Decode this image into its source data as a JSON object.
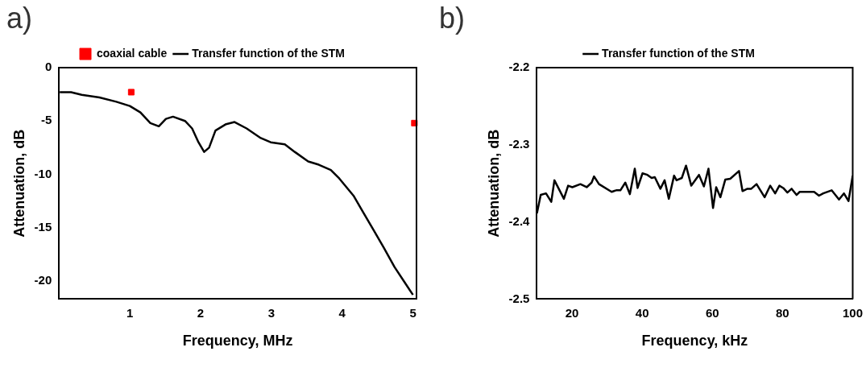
{
  "chart_data": [
    {
      "type": "line",
      "title": "a)",
      "xlabel": "Frequency, MHz",
      "ylabel": "Attenuation, dB",
      "xlim": [
        0,
        5.05
      ],
      "ylim": [
        -21.7,
        0
      ],
      "xticks": [
        1,
        2,
        3,
        4,
        5
      ],
      "yticks": [
        0,
        -5,
        -10,
        -15,
        -20
      ],
      "legend": "top",
      "grid": false,
      "series": [
        {
          "name": "coaxial cable",
          "type": "scatter",
          "marker": "square",
          "color": "#ff0000",
          "x": [
            1.02,
            5.02
          ],
          "values": [
            -2.3,
            -5.2
          ]
        },
        {
          "name": "Transfer function of the STM",
          "marker": "none",
          "color": "#000000",
          "x": [
            0.01,
            0.17,
            0.32,
            0.57,
            0.81,
            1.0,
            1.15,
            1.29,
            1.41,
            1.51,
            1.61,
            1.78,
            1.88,
            1.97,
            2.05,
            2.12,
            2.21,
            2.36,
            2.48,
            2.65,
            2.85,
            2.99,
            3.19,
            3.33,
            3.52,
            3.67,
            3.84,
            3.96,
            4.16,
            4.3,
            4.45,
            4.59,
            4.74,
            4.88,
            5.0
          ],
          "values": [
            -2.3,
            -2.3,
            -2.55,
            -2.8,
            -3.2,
            -3.6,
            -4.2,
            -5.2,
            -5.5,
            -4.8,
            -4.6,
            -5.0,
            -5.7,
            -7.0,
            -7.9,
            -7.5,
            -5.9,
            -5.3,
            -5.1,
            -5.7,
            -6.6,
            -7.0,
            -7.2,
            -7.9,
            -8.8,
            -9.1,
            -9.6,
            -10.4,
            -12.0,
            -13.6,
            -15.3,
            -16.9,
            -18.7,
            -20.1,
            -21.3
          ]
        }
      ]
    },
    {
      "type": "line",
      "title": "b)",
      "xlabel": "Frequency, kHz",
      "ylabel": "Attenuation, dB",
      "xlim": [
        10,
        100
      ],
      "ylim": [
        -2.5,
        -2.2
      ],
      "xticks": [
        20,
        40,
        60,
        80,
        100
      ],
      "yticks": [
        -2.2,
        -2.3,
        -2.4,
        -2.5
      ],
      "legend": "top",
      "grid": false,
      "series": [
        {
          "name": "Transfer function of the STM",
          "marker": "none",
          "color": "#000000",
          "x": [
            10,
            11.1,
            12.6,
            14.1,
            15.0,
            17.7,
            18.9,
            20.1,
            22.4,
            24.2,
            25.6,
            26.3,
            27.7,
            31.3,
            32.6,
            33.8,
            35.2,
            36.5,
            37.9,
            38.7,
            40.1,
            41.5,
            42.7,
            43.6,
            45.2,
            46.4,
            47.6,
            49.1,
            49.8,
            51.3,
            52.5,
            54.0,
            56.2,
            57.6,
            58.9,
            60.2,
            61.1,
            62.3,
            63.7,
            65.1,
            67.6,
            68.6,
            70.0,
            71.1,
            72.6,
            74.9,
            76.5,
            77.9,
            79.1,
            80.2,
            81.4,
            82.6,
            84.0,
            84.9,
            89.0,
            90.4,
            91.6,
            94.0,
            96.1,
            97.5,
            98.8,
            100
          ],
          "values": [
            -2.389,
            -2.365,
            -2.363,
            -2.374,
            -2.346,
            -2.37,
            -2.353,
            -2.355,
            -2.351,
            -2.355,
            -2.349,
            -2.341,
            -2.351,
            -2.361,
            -2.359,
            -2.359,
            -2.349,
            -2.364,
            -2.331,
            -2.356,
            -2.337,
            -2.339,
            -2.343,
            -2.342,
            -2.357,
            -2.346,
            -2.37,
            -2.34,
            -2.346,
            -2.343,
            -2.327,
            -2.353,
            -2.339,
            -2.354,
            -2.331,
            -2.382,
            -2.355,
            -2.368,
            -2.345,
            -2.344,
            -2.334,
            -2.36,
            -2.357,
            -2.357,
            -2.351,
            -2.368,
            -2.353,
            -2.363,
            -2.353,
            -2.356,
            -2.362,
            -2.357,
            -2.365,
            -2.361,
            -2.361,
            -2.366,
            -2.363,
            -2.359,
            -2.371,
            -2.363,
            -2.373,
            -2.34
          ]
        }
      ]
    }
  ]
}
